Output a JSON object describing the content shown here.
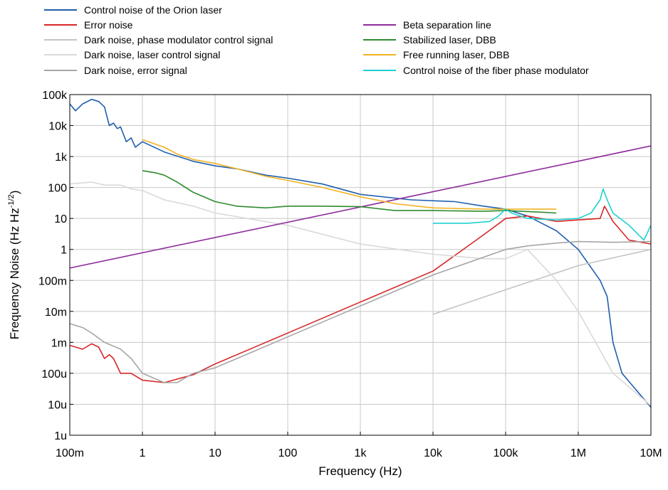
{
  "chart_data": {
    "type": "line",
    "xlabel": "Frequency (Hz)",
    "ylabel": "Frequency Noise (Hz Hz",
    "ylabel_sup": "-1/2",
    "ylabel_tail": ")",
    "xscale": "log",
    "yscale": "log",
    "xlim": [
      0.1,
      10000000
    ],
    "ylim": [
      1e-06,
      100000
    ],
    "grid": true,
    "legend_placement": "top, two columns",
    "x_ticks": [
      {
        "value": 0.1,
        "label": "100m"
      },
      {
        "value": 1,
        "label": "1"
      },
      {
        "value": 10,
        "label": "10"
      },
      {
        "value": 100,
        "label": "100"
      },
      {
        "value": 1000,
        "label": "1k"
      },
      {
        "value": 10000,
        "label": "10k"
      },
      {
        "value": 100000,
        "label": "100k"
      },
      {
        "value": 1000000,
        "label": "1M"
      },
      {
        "value": 10000000,
        "label": "10M"
      }
    ],
    "y_ticks": [
      {
        "value": 100000,
        "label": "100k"
      },
      {
        "value": 10000,
        "label": "10k"
      },
      {
        "value": 1000,
        "label": "1k"
      },
      {
        "value": 100,
        "label": "100"
      },
      {
        "value": 10,
        "label": "10"
      },
      {
        "value": 1,
        "label": "1"
      },
      {
        "value": 0.1,
        "label": "100m"
      },
      {
        "value": 0.01,
        "label": "10m"
      },
      {
        "value": 0.001,
        "label": "1m"
      },
      {
        "value": 0.0001,
        "label": "100u"
      },
      {
        "value": 1e-05,
        "label": "10u"
      },
      {
        "value": 1e-06,
        "label": "1u"
      }
    ],
    "series": [
      {
        "name": "Control noise of the Orion laser",
        "color": "#1f5fad",
        "legend_col": 0,
        "x": [
          0.1,
          0.12,
          0.15,
          0.2,
          0.25,
          0.3,
          0.35,
          0.4,
          0.45,
          0.5,
          0.6,
          0.7,
          0.8,
          1,
          2,
          5,
          10,
          20,
          50,
          100,
          300,
          1000,
          5000,
          20000,
          50000,
          100000,
          200000,
          500000,
          1000000,
          2000000,
          2500000,
          3000000,
          4000000,
          10000000
        ],
        "y": [
          50000,
          30000,
          50000,
          70000,
          60000,
          40000,
          10000,
          12000,
          8000,
          9000,
          3000,
          4000,
          2000,
          3000,
          1400,
          700,
          500,
          400,
          250,
          200,
          130,
          60,
          40,
          35,
          25,
          20,
          12,
          4,
          1,
          0.1,
          0.03,
          0.001,
          0.0001,
          8e-06
        ]
      },
      {
        "name": "Error noise",
        "color": "#d62728",
        "legend_col": 0,
        "x": [
          0.1,
          0.15,
          0.2,
          0.25,
          0.3,
          0.35,
          0.4,
          0.5,
          0.7,
          1,
          2,
          5,
          10,
          100,
          1000,
          10000,
          50000,
          100000,
          200000,
          500000,
          1000000,
          2000000,
          2300000,
          3000000,
          5000000,
          10000000
        ],
        "y": [
          0.0008,
          0.0006,
          0.0009,
          0.0007,
          0.0003,
          0.0004,
          0.0003,
          0.0001,
          0.0001,
          6e-05,
          5e-05,
          9e-05,
          0.0002,
          0.002,
          0.02,
          0.2,
          3,
          10,
          12,
          8,
          9,
          10,
          25,
          8,
          2,
          1.5
        ]
      },
      {
        "name": "Dark noise, phase modulator control signal",
        "color": "#c4c4c4",
        "legend_col": 0,
        "x": [
          10000,
          100000,
          1000000,
          10000000
        ],
        "y": [
          0.008,
          0.05,
          0.3,
          1
        ]
      },
      {
        "name": "Dark noise, laser control signal",
        "color": "#d9d9d9",
        "legend_col": 0,
        "x": [
          0.1,
          0.2,
          0.3,
          0.5,
          0.7,
          1,
          2,
          5,
          10,
          100,
          1000,
          10000,
          50000,
          100000,
          200000,
          500000,
          1000000,
          3000000,
          10000000
        ],
        "y": [
          130,
          150,
          120,
          120,
          90,
          80,
          40,
          25,
          15,
          6,
          1.5,
          0.7,
          0.5,
          0.5,
          1,
          0.1,
          0.01,
          0.0001,
          9e-06
        ]
      },
      {
        "name": "Dark noise, error signal",
        "color": "#a6a6a6",
        "legend_col": 0,
        "x": [
          0.1,
          0.15,
          0.2,
          0.3,
          0.5,
          0.7,
          1,
          2,
          3,
          5,
          10,
          100,
          1000,
          10000,
          100000,
          200000,
          500000,
          1000000,
          3000000,
          10000000
        ],
        "y": [
          0.004,
          0.003,
          0.002,
          0.001,
          0.0006,
          0.0003,
          0.0001,
          5e-05,
          5e-05,
          0.0001,
          0.00015,
          0.0015,
          0.015,
          0.15,
          1,
          1.3,
          1.6,
          1.8,
          1.7,
          1.8
        ]
      },
      {
        "name": "Beta separation line",
        "color": "#8e2b9c",
        "legend_col": 1,
        "x": [
          0.1,
          10000000
        ],
        "y": [
          0.25,
          2200
        ]
      },
      {
        "name": "Stabilized laser, DBB",
        "color": "#2e8b2e",
        "legend_col": 1,
        "x": [
          1,
          1.5,
          2,
          3,
          5,
          10,
          20,
          50,
          100,
          300,
          1000,
          3000,
          10000,
          50000,
          100000,
          300000,
          500000
        ],
        "y": [
          350,
          300,
          250,
          150,
          70,
          35,
          25,
          22,
          25,
          25,
          24,
          18,
          18,
          17,
          18,
          16,
          15
        ]
      },
      {
        "name": "Free running laser, DBB",
        "color": "#f0b323",
        "legend_col": 1,
        "x": [
          1,
          2,
          3,
          5,
          10,
          20,
          50,
          100,
          300,
          1000,
          3000,
          10000,
          50000,
          100000,
          200000,
          500000
        ],
        "y": [
          3500,
          2000,
          1200,
          800,
          600,
          400,
          230,
          170,
          100,
          50,
          30,
          22,
          20,
          20,
          20,
          20
        ]
      },
      {
        "name": "Control noise of the fiber phase modulator",
        "color": "#1ed1d1",
        "legend_col": 1,
        "x": [
          10000,
          30000,
          60000,
          80000,
          100000,
          120000,
          200000,
          500000,
          1000000,
          1500000,
          2000000,
          2200000,
          2500000,
          3000000,
          5000000,
          8000000,
          10000000
        ],
        "y": [
          7,
          7,
          8,
          12,
          20,
          15,
          10,
          9,
          10,
          15,
          40,
          90,
          40,
          15,
          6,
          2,
          6
        ]
      }
    ]
  }
}
